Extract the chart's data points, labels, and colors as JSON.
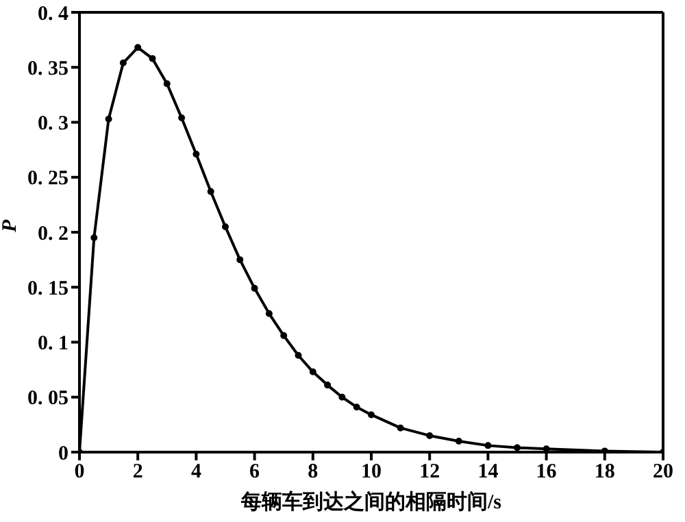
{
  "chart_data": {
    "type": "line",
    "xlabel": "每辆车到达之间的相隔时间/s",
    "ylabel": "P",
    "x": [
      0,
      0.5,
      1,
      1.5,
      2,
      2.5,
      3,
      3.5,
      4,
      4.5,
      5,
      5.5,
      6,
      6.5,
      7,
      7.5,
      8,
      8.5,
      9,
      9.5,
      10,
      11,
      12,
      13,
      14,
      15,
      16,
      18,
      20
    ],
    "series": [
      {
        "color": "#000000",
        "values": [
          0,
          0.195,
          0.303,
          0.354,
          0.368,
          0.358,
          0.335,
          0.304,
          0.271,
          0.237,
          0.205,
          0.175,
          0.149,
          0.126,
          0.106,
          0.088,
          0.073,
          0.061,
          0.05,
          0.041,
          0.034,
          0.022,
          0.015,
          0.01,
          0.006,
          0.004,
          0.003,
          0.001,
          0
        ]
      }
    ],
    "xlim": [
      0,
      20
    ],
    "xticks": [
      0,
      2,
      4,
      6,
      8,
      10,
      12,
      14,
      16,
      18,
      20
    ],
    "ylim": [
      0,
      0.4
    ],
    "yticks": [
      0,
      0.05,
      0.1,
      0.15,
      0.2,
      0.25,
      0.3,
      0.35,
      0.4
    ],
    "grid": false,
    "legend": false,
    "marker": "circle",
    "line_style": "solid"
  }
}
